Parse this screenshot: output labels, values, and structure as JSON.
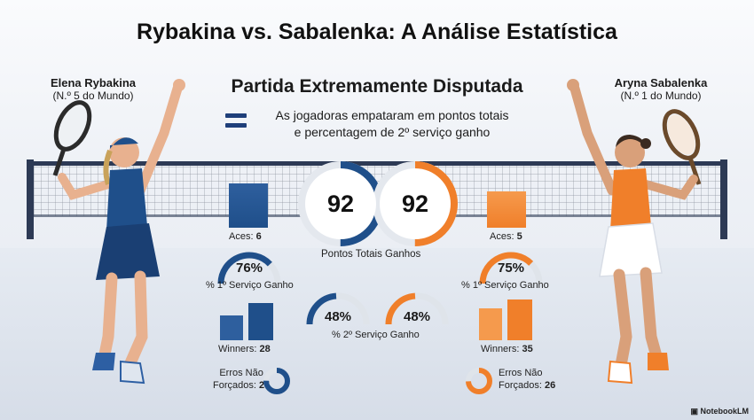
{
  "title": "Rybakina vs. Sabalenka: A Análise Estatística",
  "subtitle": "Partida Extremamente Disputada",
  "note_line1": "As jogadoras empataram em pontos totais",
  "note_line2": "e percentagem de 2º serviço ganho",
  "players": {
    "left": {
      "name": "Elena Rybakina",
      "rank": "(N.º 5 do Mundo)",
      "color": "#1f4f8a"
    },
    "right": {
      "name": "Aryna Sabalenka",
      "rank": "(N.º 1 do Mundo)",
      "color": "#f07f2a"
    }
  },
  "total_points": {
    "left": "92",
    "right": "92",
    "label": "Pontos Totais Ganhos",
    "left_fill": 0.5,
    "right_fill": 0.5
  },
  "aces": {
    "left_label": "Aces:",
    "left_value": "6",
    "right_label": "Aces:",
    "right_value": "5"
  },
  "first_serve": {
    "left": "76%",
    "right": "75%",
    "label": "% 1º Serviço Ganho",
    "left_fill": 0.76,
    "right_fill": 0.75
  },
  "second_serve": {
    "left": "48%",
    "right": "48%",
    "label": "% 2º Serviço Ganho",
    "left_fill": 0.48,
    "right_fill": 0.48
  },
  "winners": {
    "left_label": "Winners:",
    "left_value": "28",
    "right_label": "Winners:",
    "right_value": "35"
  },
  "errors": {
    "line1": "Erros Não",
    "line2": "Forçados:",
    "left_value": "25",
    "right_value": "26",
    "left_fill": 0.25,
    "right_fill": 0.26
  },
  "brand": "NotebookLM"
}
